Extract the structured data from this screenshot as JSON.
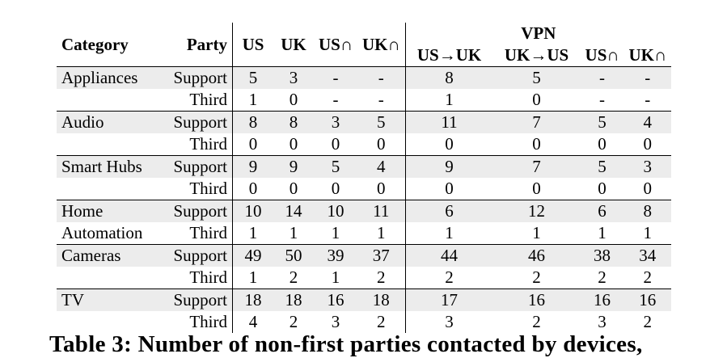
{
  "table": {
    "headers": {
      "category": "Category",
      "party": "Party",
      "us": "US",
      "uk": "UK",
      "us_cap": "US∩",
      "uk_cap": "UK∩",
      "vpn": "VPN",
      "vpn_us_uk": "US→UK",
      "vpn_uk_us": "UK→US",
      "vpn_us_cap": "US∩",
      "vpn_uk_cap": "UK∩"
    },
    "rows": [
      {
        "category": "Appliances",
        "party": "Support",
        "values": [
          "5",
          "3",
          "-",
          "-",
          "8",
          "5",
          "-",
          "-"
        ]
      },
      {
        "category": "",
        "party": "Third",
        "values": [
          "1",
          "0",
          "-",
          "-",
          "1",
          "0",
          "-",
          "-"
        ]
      },
      {
        "category": "Audio",
        "party": "Support",
        "values": [
          "8",
          "8",
          "3",
          "5",
          "11",
          "7",
          "5",
          "4"
        ]
      },
      {
        "category": "",
        "party": "Third",
        "values": [
          "0",
          "0",
          "0",
          "0",
          "0",
          "0",
          "0",
          "0"
        ]
      },
      {
        "category": "Smart Hubs",
        "party": "Support",
        "values": [
          "9",
          "9",
          "5",
          "4",
          "9",
          "7",
          "5",
          "3"
        ]
      },
      {
        "category": "",
        "party": "Third",
        "values": [
          "0",
          "0",
          "0",
          "0",
          "0",
          "0",
          "0",
          "0"
        ]
      },
      {
        "category": "Home",
        "party": "Support",
        "values": [
          "10",
          "14",
          "10",
          "11",
          "6",
          "12",
          "6",
          "8"
        ]
      },
      {
        "category": "Automation",
        "party": "Third",
        "values": [
          "1",
          "1",
          "1",
          "1",
          "1",
          "1",
          "1",
          "1"
        ]
      },
      {
        "category": "Cameras",
        "party": "Support",
        "values": [
          "49",
          "50",
          "39",
          "37",
          "44",
          "46",
          "38",
          "34"
        ]
      },
      {
        "category": "",
        "party": "Third",
        "values": [
          "1",
          "2",
          "1",
          "2",
          "2",
          "2",
          "2",
          "2"
        ]
      },
      {
        "category": "TV",
        "party": "Support",
        "values": [
          "18",
          "18",
          "16",
          "18",
          "17",
          "16",
          "16",
          "16"
        ]
      },
      {
        "category": "",
        "party": "Third",
        "values": [
          "4",
          "2",
          "3",
          "2",
          "3",
          "2",
          "3",
          "2"
        ]
      }
    ]
  },
  "caption": "Table 3: Number of non-first parties contacted by devices,"
}
